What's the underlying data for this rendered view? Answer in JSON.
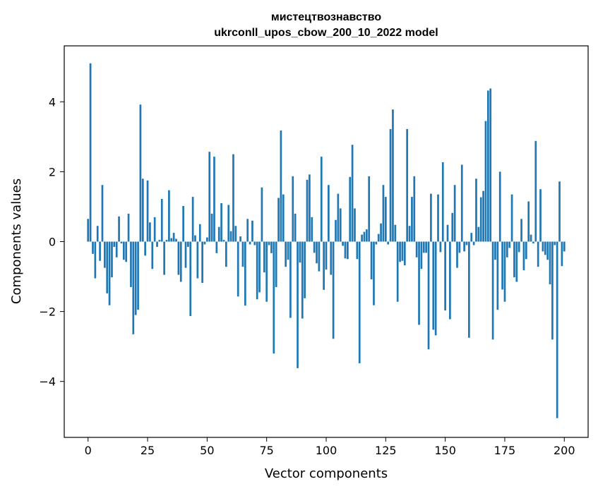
{
  "chart_data": {
    "type": "bar",
    "title": "мистецтвознавство",
    "subtitle": "ukrconll_upos_cbow_200_10_2022 model",
    "xlabel": "Vector components",
    "ylabel": "Components values",
    "xlim": [
      -10,
      210
    ],
    "ylim": [
      -5.6,
      5.6
    ],
    "xticks": [
      0,
      25,
      50,
      75,
      100,
      125,
      150,
      175,
      200
    ],
    "yticks": [
      -4,
      -2,
      0,
      2,
      4
    ],
    "xtick_labels": [
      "0",
      "25",
      "50",
      "75",
      "100",
      "125",
      "150",
      "175",
      "200"
    ],
    "ytick_labels": [
      "−4",
      "−2",
      "0",
      "2",
      "4"
    ],
    "grid": false,
    "bar_color": "#1f77b4",
    "values": [
      0.65,
      5.1,
      -0.35,
      -1.05,
      0.45,
      -0.55,
      1.62,
      -0.75,
      -1.48,
      -1.82,
      -1.02,
      -0.15,
      -0.45,
      0.72,
      -0.05,
      -0.52,
      -0.58,
      0.8,
      -1.3,
      -2.65,
      -2.1,
      -1.95,
      3.92,
      1.8,
      -0.4,
      1.75,
      0.55,
      -0.78,
      0.7,
      -0.15,
      0.05,
      1.22,
      -0.95,
      0.05,
      1.47,
      0.1,
      0.25,
      0.08,
      -0.95,
      -1.15,
      1.02,
      -0.75,
      -0.15,
      -2.13,
      1.28,
      0.18,
      -1.05,
      0.5,
      -1.18,
      -0.08,
      0.12,
      2.57,
      0.8,
      2.43,
      -0.33,
      0.42,
      1.1,
      0.05,
      -0.72,
      1.05,
      0.3,
      2.5,
      0.45,
      -1.57,
      0.15,
      -0.72,
      -1.83,
      0.65,
      -0.08,
      0.6,
      -0.1,
      -1.65,
      -1.45,
      1.55,
      -0.88,
      -1.72,
      -0.1,
      -0.33,
      -3.2,
      -1.3,
      1.25,
      3.18,
      1.35,
      -0.72,
      -0.52,
      -2.18,
      1.87,
      0.8,
      -3.62,
      -0.6,
      -2.2,
      -1.62,
      1.77,
      1.92,
      0.7,
      -0.32,
      -0.62,
      -0.85,
      2.43,
      -1.38,
      -0.8,
      1.62,
      -0.95,
      -2.78,
      0.62,
      1.37,
      0.95,
      -0.12,
      -0.48,
      -0.5,
      1.85,
      2.77,
      0.95,
      -0.5,
      -3.48,
      0.2,
      0.28,
      0.35,
      1.87,
      -1.08,
      -1.82,
      -0.08,
      0.22,
      0.52,
      1.62,
      1.28,
      -0.08,
      3.22,
      3.78,
      0.48,
      -1.72,
      -0.58,
      -0.55,
      -0.68,
      3.22,
      0.45,
      1.28,
      1.87,
      -0.45,
      -2.38,
      -0.78,
      -0.32,
      -0.32,
      -3.08,
      1.37,
      -2.52,
      -2.68,
      1.35,
      -0.3,
      2.27,
      -1.97,
      0.48,
      -2.22,
      0.82,
      1.62,
      -0.75,
      -0.32,
      2.2,
      -0.28,
      -0.1,
      -2.75,
      0.25,
      -0.1,
      1.8,
      0.42,
      1.27,
      1.45,
      3.45,
      4.32,
      4.38,
      -2.8,
      -0.52,
      -1.95,
      2.0,
      -1.37,
      -1.72,
      -0.45,
      -0.18,
      1.35,
      -1.02,
      -1.15,
      -0.3,
      0.65,
      -0.82,
      -0.5,
      1.15,
      0.2,
      -0.05,
      2.88,
      -0.72,
      1.5,
      -0.28,
      -0.38,
      -0.52,
      -1.22,
      -2.8,
      -0.1,
      -5.05,
      1.72,
      -0.7,
      -0.28
    ]
  }
}
